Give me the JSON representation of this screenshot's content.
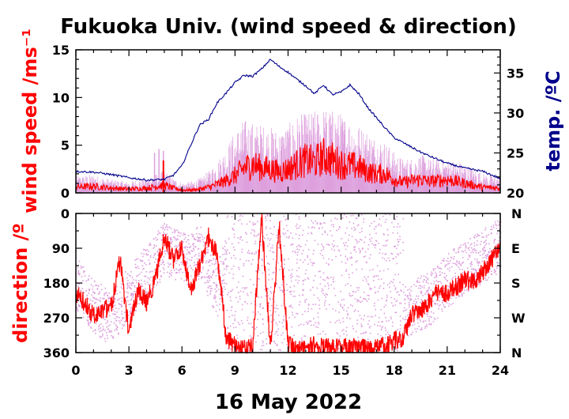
{
  "chart_data": [
    {
      "type": "line",
      "panel": "wind-speed-and-temperature",
      "title": "Fukuoka Univ. (wind speed & direction)",
      "xlabel": "16 May 2022",
      "ylabel_left": "wind speed /ms⁻¹",
      "ylabel_right": "temp. /ºC",
      "x_ticks": [
        "0",
        "3",
        "6",
        "9",
        "12",
        "15",
        "18",
        "21",
        "24"
      ],
      "xlim": [
        0,
        24
      ],
      "ylim_left": [
        0,
        15
      ],
      "ylim_right": [
        20,
        37.9
      ],
      "y_ticks_left": [
        "0",
        "5",
        "10",
        "15"
      ],
      "y_ticks_right": [
        "20",
        "25",
        "30",
        "35"
      ],
      "grid": false,
      "colors": {
        "wind_mean": "#ff0000",
        "wind_gust": "#dda0dd",
        "temperature": "#00008b"
      },
      "series": [
        {
          "axis": "right",
          "color": "#00008b",
          "x": [
            0,
            1,
            2,
            3,
            4,
            5,
            5.5,
            6,
            6.5,
            7,
            7.5,
            8,
            8.5,
            9,
            9.5,
            10,
            10.5,
            11,
            11.5,
            12,
            12.5,
            13,
            13.5,
            14,
            14.5,
            15,
            15.5,
            16,
            16.5,
            17,
            17.5,
            18,
            18.5,
            19,
            19.5,
            20,
            21,
            22,
            23,
            24
          ],
          "values": [
            22.7,
            22.6,
            22.3,
            21.9,
            21.6,
            21.7,
            22.2,
            23.4,
            26.0,
            28.5,
            29.2,
            31.3,
            32.5,
            33.8,
            34.7,
            34.6,
            35.5,
            36.7,
            35.8,
            35.1,
            34.2,
            33.4,
            32.4,
            33.5,
            32.3,
            32.6,
            33.5,
            32.4,
            30.7,
            29.4,
            28.1,
            26.9,
            26.3,
            25.7,
            25.1,
            24.6,
            23.7,
            23.1,
            22.7,
            21.8
          ]
        },
        {
          "axis": "left",
          "color": "#ff0000",
          "x": [
            0,
            1,
            2,
            3,
            4,
            5,
            5.5,
            6,
            6.5,
            7,
            7.5,
            8,
            8.5,
            9,
            9.5,
            10,
            10.5,
            11,
            11.5,
            12,
            12.5,
            13,
            13.5,
            14,
            14.5,
            15,
            15.5,
            16,
            16.5,
            17,
            17.5,
            18,
            18.5,
            19,
            19.5,
            20,
            21,
            22,
            23,
            24
          ],
          "values": [
            0.6,
            0.7,
            0.5,
            0.4,
            0.5,
            0.8,
            0.5,
            0.3,
            0.3,
            0.4,
            0.6,
            0.9,
            1.3,
            1.8,
            2.6,
            3.0,
            2.6,
            2.5,
            2.2,
            2.5,
            3.0,
            3.4,
            3.2,
            3.8,
            3.5,
            3.0,
            2.9,
            2.7,
            2.2,
            2.0,
            2.0,
            1.4,
            1.1,
            1.3,
            1.4,
            1.2,
            1.4,
            1.0,
            0.6,
            0.5
          ]
        },
        {
          "axis": "left",
          "color": "#dda0dd",
          "x": [
            0,
            1,
            2,
            3,
            4,
            5,
            5.5,
            6,
            6.5,
            7,
            7.5,
            8,
            8.5,
            9,
            9.5,
            10,
            10.5,
            11,
            11.5,
            12,
            12.5,
            13,
            13.5,
            14,
            14.5,
            15,
            15.5,
            16,
            16.5,
            17,
            17.5,
            18,
            18.5,
            19,
            19.5,
            20,
            21,
            22,
            23,
            24
          ],
          "values": [
            1.5,
            1.6,
            1.2,
            1.0,
            1.3,
            2.0,
            1.3,
            0.9,
            1.0,
            1.3,
            1.9,
            2.8,
            4.0,
            5.4,
            6.5,
            6.2,
            6.0,
            5.8,
            5.5,
            6.0,
            6.8,
            7.0,
            7.2,
            7.5,
            7.3,
            7.0,
            6.5,
            6.0,
            5.5,
            4.9,
            4.5,
            3.6,
            3.0,
            3.1,
            3.4,
            3.0,
            3.0,
            2.6,
            1.7,
            1.4
          ]
        }
      ]
    },
    {
      "type": "scatter",
      "panel": "wind-direction",
      "ylabel": "direction /º",
      "x_ticks": [
        "0",
        "3",
        "6",
        "9",
        "12",
        "15",
        "18",
        "21",
        "24"
      ],
      "xlim": [
        0,
        24
      ],
      "ylim": [
        0,
        360
      ],
      "y_inverted": true,
      "y_ticks_left": [
        "0",
        "90",
        "180",
        "270",
        "360"
      ],
      "y_ticks_right": [
        "N",
        "E",
        "S",
        "W",
        "N"
      ],
      "grid": false,
      "colors": {
        "direction_mean": "#ff0000",
        "direction_samples": "#dda0dd"
      },
      "series": [
        {
          "color": "#ff0000",
          "x": [
            0,
            0.5,
            1,
            1.5,
            2,
            2.5,
            3,
            3.5,
            4,
            4.5,
            5,
            5.5,
            6,
            6.5,
            7,
            7.5,
            8,
            8.5,
            9,
            9.5,
            10,
            10.5,
            11,
            11.5,
            12,
            12.5,
            13,
            13.5,
            14,
            14.5,
            15,
            15.5,
            16,
            16.5,
            17,
            17.5,
            18,
            18.5,
            19,
            19.5,
            20,
            20.5,
            21,
            21.5,
            22,
            22.5,
            23,
            23.5,
            24
          ],
          "values": [
            205,
            230,
            265,
            250,
            240,
            120,
            310,
            200,
            230,
            170,
            60,
            120,
            90,
            200,
            130,
            60,
            110,
            320,
            340,
            350,
            345,
            10,
            345,
            30,
            340,
            355,
            350,
            340,
            345,
            350,
            345,
            350,
            340,
            355,
            350,
            340,
            330,
            320,
            260,
            250,
            230,
            200,
            210,
            190,
            170,
            180,
            150,
            120,
            90
          ]
        },
        {
          "color": "#dda0dd",
          "x": [
            0,
            1,
            2,
            3,
            4,
            5,
            6,
            7,
            8,
            9,
            10,
            11,
            12,
            13,
            14,
            15,
            16,
            17,
            18,
            19,
            20,
            21,
            22,
            23,
            24
          ],
          "values": [
            180,
            240,
            270,
            200,
            150,
            90,
            120,
            100,
            200,
            20,
            320,
            40,
            300,
            60,
            330,
            90,
            310,
            200,
            280,
            240,
            220,
            170,
            140,
            110,
            80
          ]
        }
      ]
    }
  ]
}
